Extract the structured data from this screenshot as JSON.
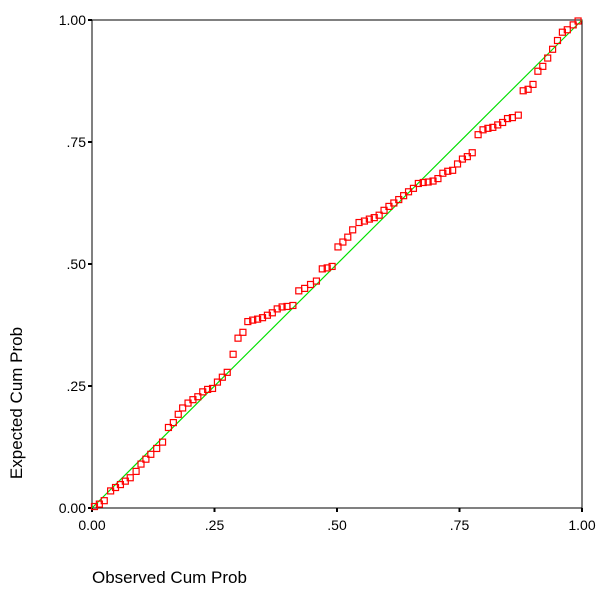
{
  "chart_data": {
    "type": "scatter",
    "title": "",
    "xlabel": "Observed Cum Prob",
    "ylabel": "Expected Cum Prob",
    "xlim": [
      0,
      1
    ],
    "ylim": [
      0,
      1
    ],
    "x_ticks": [
      0,
      0.25,
      0.5,
      0.75,
      1
    ],
    "y_ticks": [
      0,
      0.25,
      0.5,
      0.75,
      1
    ],
    "x_tick_labels": [
      "0.00",
      ".25",
      ".50",
      ".75",
      "1.00"
    ],
    "y_tick_labels": [
      "0.00",
      ".25",
      ".50",
      ".75",
      "1.00"
    ],
    "grid": false,
    "legend": "none",
    "reference_line": {
      "from": [
        0,
        0
      ],
      "to": [
        1,
        1
      ],
      "color": "#00e000"
    },
    "marker_color": "#ff0000",
    "marker": "open-square",
    "series": [
      {
        "points": [
          [
            0.005,
            0.003
          ],
          [
            0.015,
            0.008
          ],
          [
            0.025,
            0.015
          ],
          [
            0.038,
            0.035
          ],
          [
            0.048,
            0.042
          ],
          [
            0.058,
            0.048
          ],
          [
            0.068,
            0.055
          ],
          [
            0.078,
            0.062
          ],
          [
            0.09,
            0.075
          ],
          [
            0.1,
            0.09
          ],
          [
            0.11,
            0.1
          ],
          [
            0.12,
            0.11
          ],
          [
            0.132,
            0.122
          ],
          [
            0.144,
            0.135
          ],
          [
            0.156,
            0.165
          ],
          [
            0.166,
            0.175
          ],
          [
            0.176,
            0.192
          ],
          [
            0.185,
            0.205
          ],
          [
            0.196,
            0.215
          ],
          [
            0.206,
            0.222
          ],
          [
            0.216,
            0.228
          ],
          [
            0.226,
            0.238
          ],
          [
            0.236,
            0.243
          ],
          [
            0.246,
            0.245
          ],
          [
            0.256,
            0.258
          ],
          [
            0.266,
            0.268
          ],
          [
            0.276,
            0.278
          ],
          [
            0.288,
            0.315
          ],
          [
            0.298,
            0.348
          ],
          [
            0.308,
            0.36
          ],
          [
            0.318,
            0.382
          ],
          [
            0.328,
            0.385
          ],
          [
            0.338,
            0.387
          ],
          [
            0.348,
            0.39
          ],
          [
            0.358,
            0.395
          ],
          [
            0.368,
            0.4
          ],
          [
            0.378,
            0.408
          ],
          [
            0.388,
            0.412
          ],
          [
            0.398,
            0.413
          ],
          [
            0.41,
            0.415
          ],
          [
            0.422,
            0.445
          ],
          [
            0.434,
            0.45
          ],
          [
            0.446,
            0.458
          ],
          [
            0.458,
            0.465
          ],
          [
            0.47,
            0.49
          ],
          [
            0.48,
            0.492
          ],
          [
            0.49,
            0.495
          ],
          [
            0.502,
            0.535
          ],
          [
            0.512,
            0.545
          ],
          [
            0.522,
            0.555
          ],
          [
            0.532,
            0.57
          ],
          [
            0.545,
            0.585
          ],
          [
            0.556,
            0.588
          ],
          [
            0.566,
            0.592
          ],
          [
            0.576,
            0.595
          ],
          [
            0.586,
            0.6
          ],
          [
            0.596,
            0.61
          ],
          [
            0.606,
            0.618
          ],
          [
            0.616,
            0.625
          ],
          [
            0.626,
            0.632
          ],
          [
            0.636,
            0.64
          ],
          [
            0.646,
            0.648
          ],
          [
            0.656,
            0.655
          ],
          [
            0.666,
            0.665
          ],
          [
            0.676,
            0.667
          ],
          [
            0.686,
            0.668
          ],
          [
            0.696,
            0.67
          ],
          [
            0.706,
            0.675
          ],
          [
            0.716,
            0.686
          ],
          [
            0.726,
            0.69
          ],
          [
            0.736,
            0.692
          ],
          [
            0.746,
            0.705
          ],
          [
            0.756,
            0.715
          ],
          [
            0.766,
            0.72
          ],
          [
            0.776,
            0.728
          ],
          [
            0.788,
            0.765
          ],
          [
            0.798,
            0.775
          ],
          [
            0.808,
            0.778
          ],
          [
            0.818,
            0.78
          ],
          [
            0.828,
            0.785
          ],
          [
            0.838,
            0.79
          ],
          [
            0.848,
            0.798
          ],
          [
            0.858,
            0.8
          ],
          [
            0.87,
            0.805
          ],
          [
            0.88,
            0.855
          ],
          [
            0.89,
            0.858
          ],
          [
            0.9,
            0.868
          ],
          [
            0.91,
            0.895
          ],
          [
            0.92,
            0.905
          ],
          [
            0.93,
            0.922
          ],
          [
            0.94,
            0.94
          ],
          [
            0.95,
            0.958
          ],
          [
            0.96,
            0.975
          ],
          [
            0.97,
            0.98
          ],
          [
            0.982,
            0.99
          ],
          [
            0.992,
            0.998
          ]
        ]
      }
    ]
  }
}
